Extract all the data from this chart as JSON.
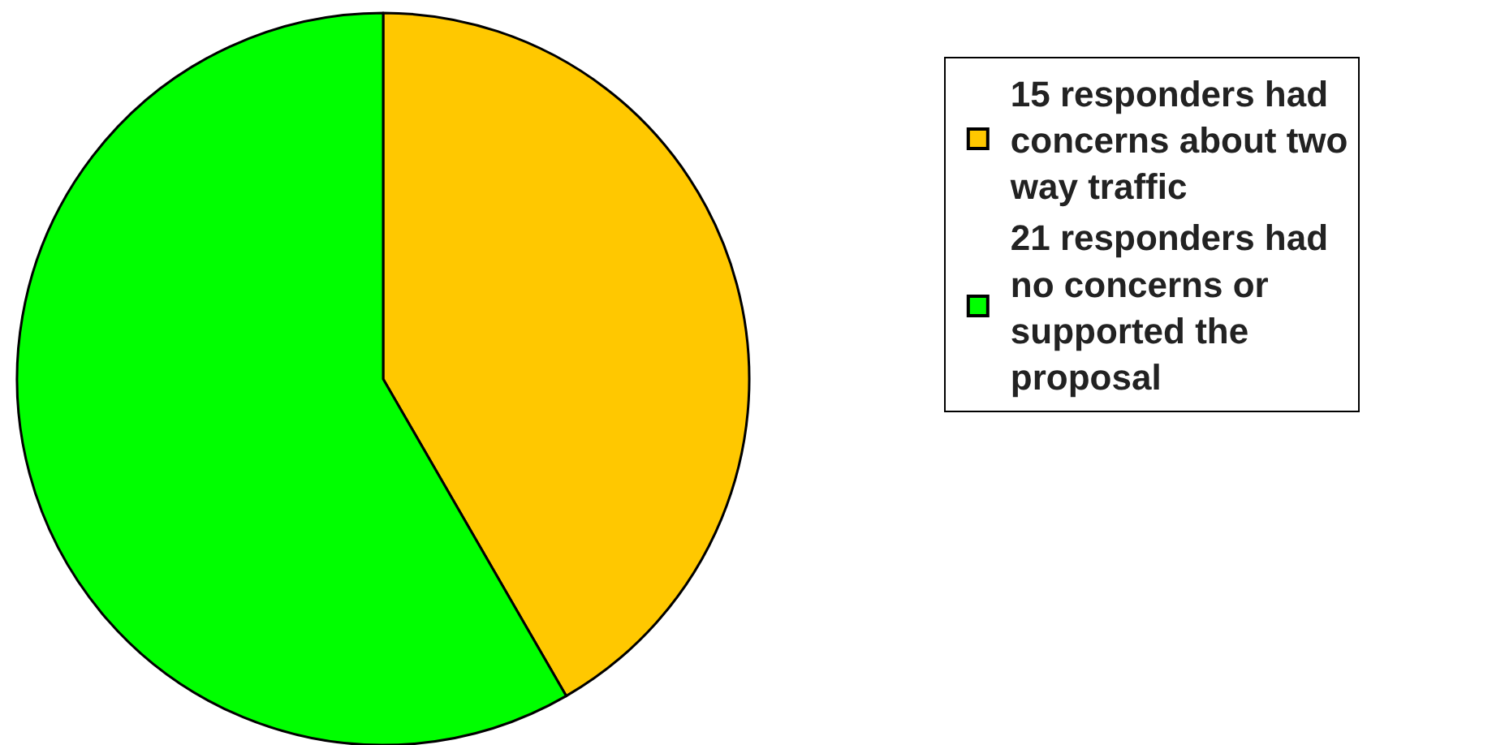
{
  "chart_data": {
    "type": "pie",
    "categories": [
      "15 responders had concerns about two way traffic",
      "21 responders had no concerns or supported the proposal"
    ],
    "values": [
      15,
      21
    ],
    "colors": [
      "#ffc800",
      "#00ff00"
    ],
    "legend": "right"
  }
}
